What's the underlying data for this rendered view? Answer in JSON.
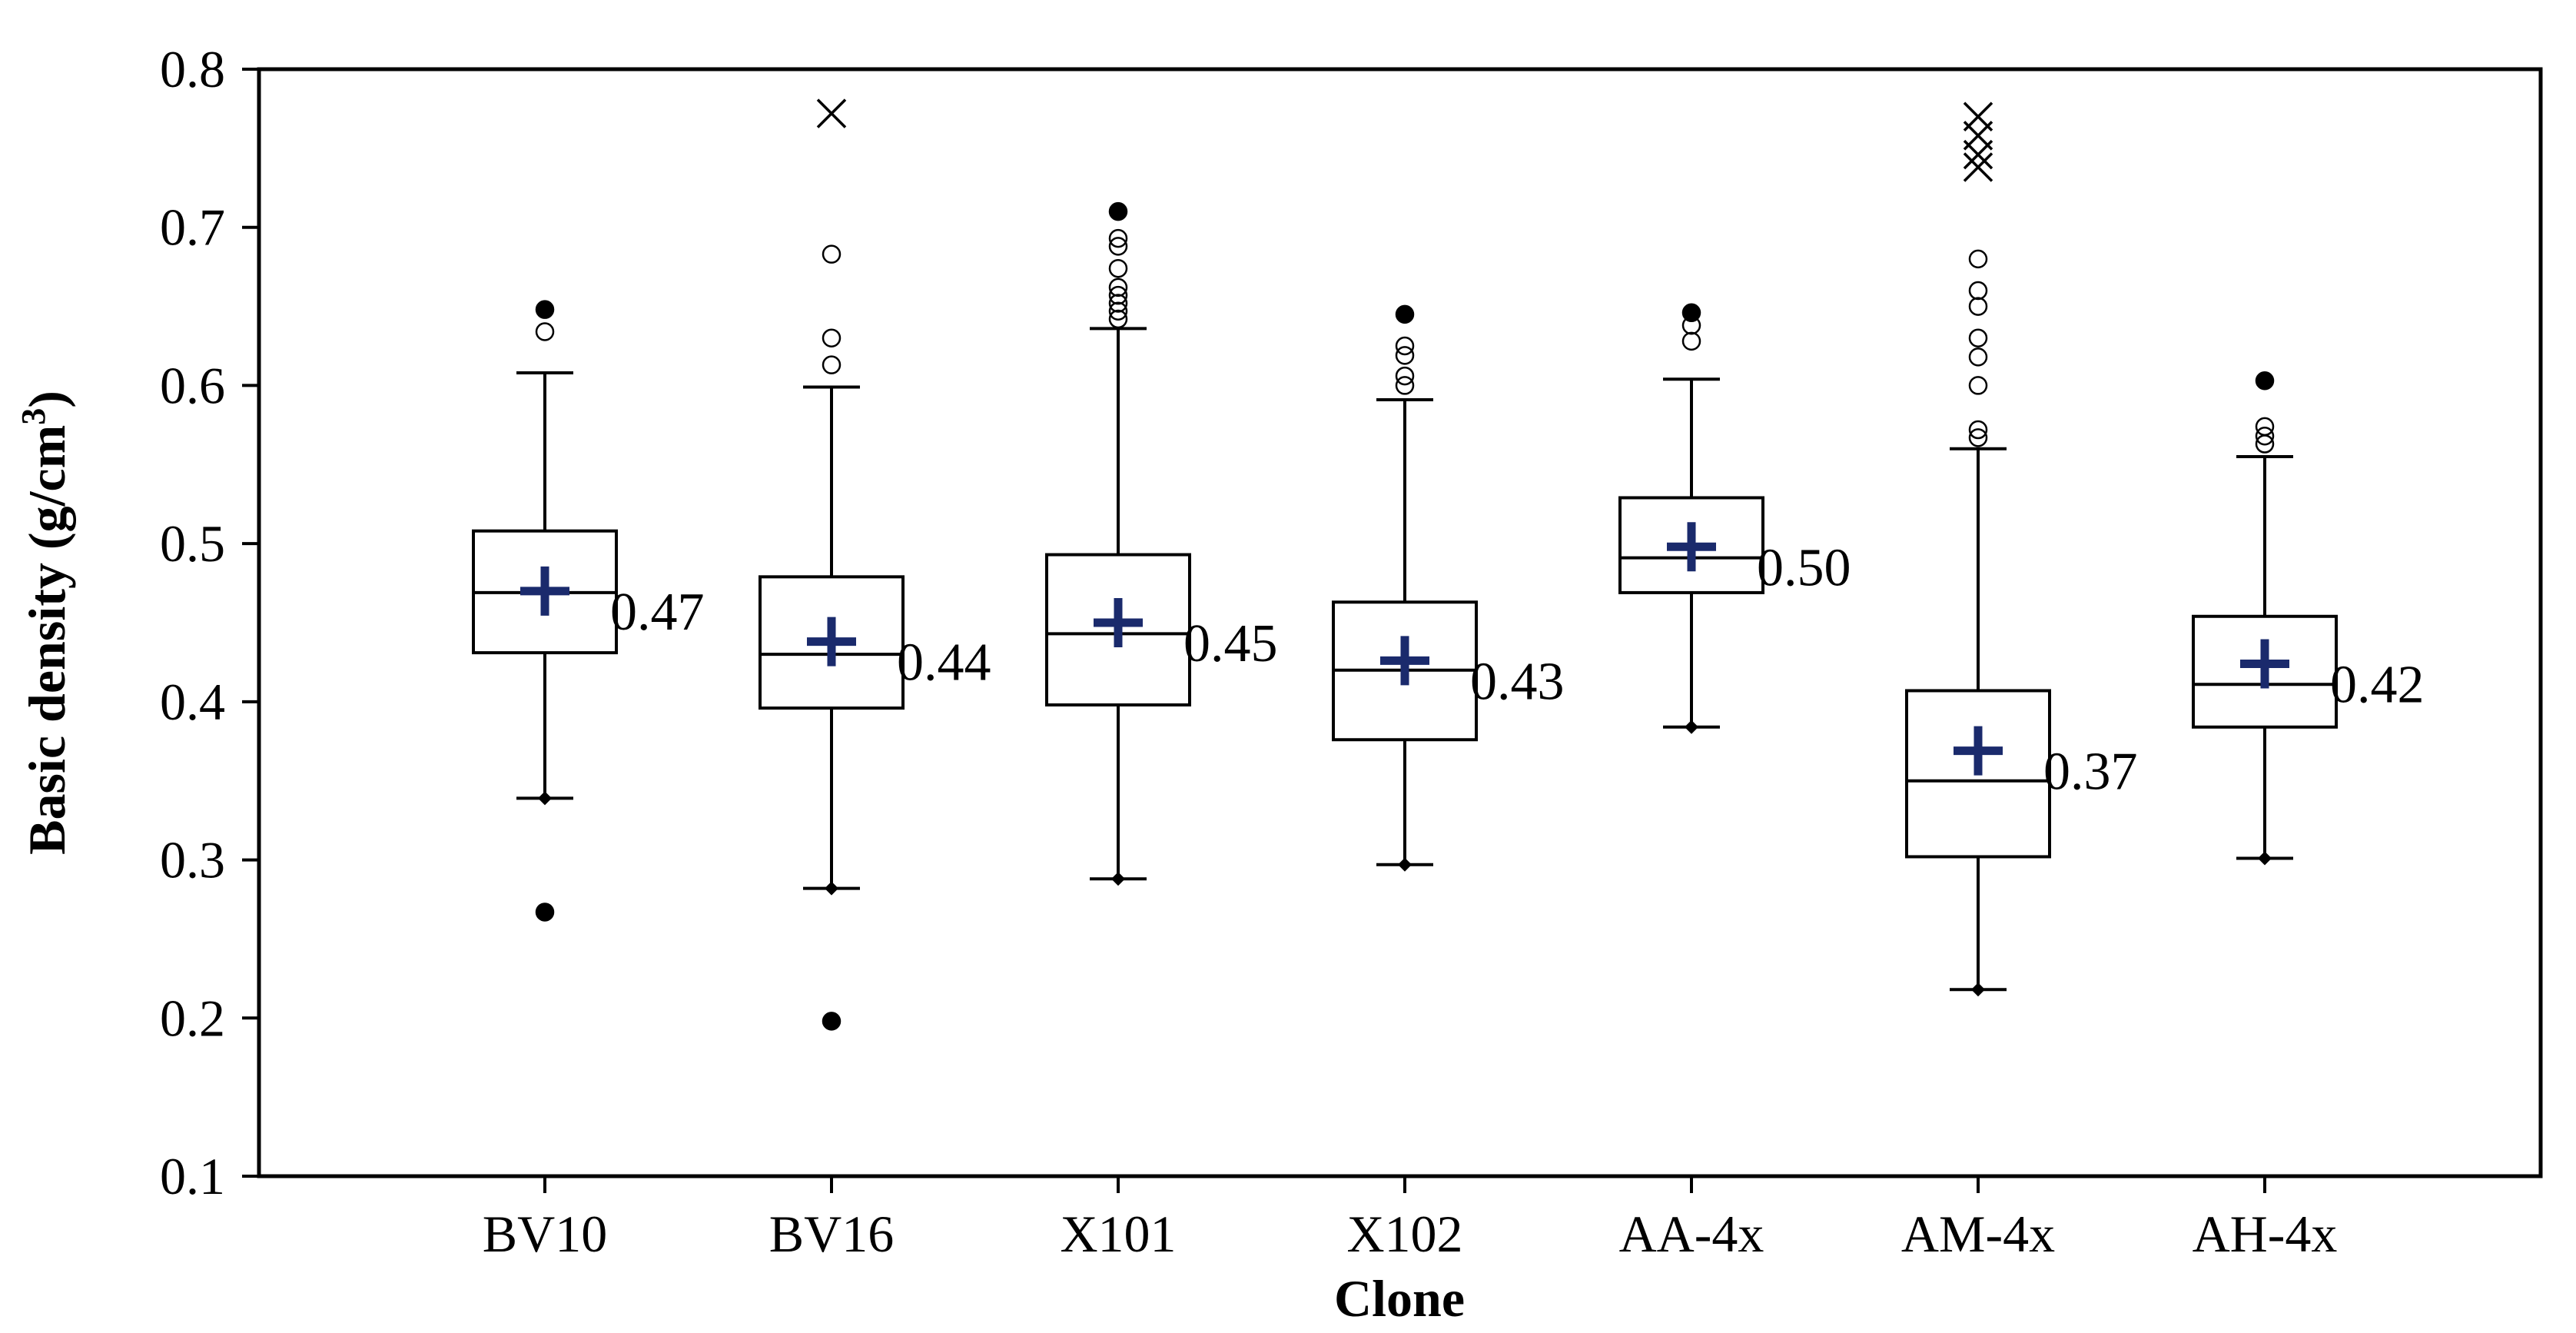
{
  "chart_data": {
    "type": "box",
    "title": "",
    "xlabel": "Clone",
    "ylabel_main": "Basic density (g/cm",
    "ylabel_sup": "3",
    "ylabel_close": ")",
    "ylim": [
      0.1,
      0.8
    ],
    "yticks": [
      0.1,
      0.2,
      0.3,
      0.4,
      0.5,
      0.6,
      0.7,
      0.8
    ],
    "ytick_labels": [
      "0.1",
      "0.2",
      "0.3",
      "0.4",
      "0.5",
      "0.6",
      "0.7",
      "0.8"
    ],
    "grid": false,
    "colors": {
      "mean_marker": "#1a2a6c",
      "box_stroke": "#000000"
    },
    "series": [
      {
        "name": "BV10",
        "q1": 0.431,
        "median": 0.469,
        "q3": 0.508,
        "whisker_low": 0.339,
        "whisker_high": 0.608,
        "mean": 0.47,
        "mean_label": "0.47",
        "outliers_open": [
          0.634
        ],
        "outliers_filled": [
          0.648,
          0.267
        ],
        "outliers_extreme": []
      },
      {
        "name": "BV16",
        "q1": 0.396,
        "median": 0.43,
        "q3": 0.479,
        "whisker_low": 0.282,
        "whisker_high": 0.599,
        "mean": 0.438,
        "mean_label": "0.44",
        "outliers_open": [
          0.613,
          0.63,
          0.683
        ],
        "outliers_filled": [
          0.198
        ],
        "outliers_extreme": [
          0.772
        ]
      },
      {
        "name": "X101",
        "q1": 0.398,
        "median": 0.443,
        "q3": 0.493,
        "whisker_low": 0.288,
        "whisker_high": 0.636,
        "mean": 0.45,
        "mean_label": "0.45",
        "outliers_open": [
          0.642,
          0.647,
          0.652,
          0.657,
          0.662,
          0.674,
          0.688,
          0.693
        ],
        "outliers_filled": [
          0.71
        ],
        "outliers_extreme": []
      },
      {
        "name": "X102",
        "q1": 0.376,
        "median": 0.42,
        "q3": 0.463,
        "whisker_low": 0.297,
        "whisker_high": 0.591,
        "mean": 0.426,
        "mean_label": "0.43",
        "outliers_open": [
          0.6,
          0.606,
          0.619,
          0.625
        ],
        "outliers_filled": [
          0.645
        ],
        "outliers_extreme": []
      },
      {
        "name": "AA-4x",
        "q1": 0.469,
        "median": 0.491,
        "q3": 0.529,
        "whisker_low": 0.384,
        "whisker_high": 0.604,
        "mean": 0.498,
        "mean_label": "0.50",
        "outliers_open": [
          0.628,
          0.638
        ],
        "outliers_filled": [
          0.646
        ],
        "outliers_extreme": []
      },
      {
        "name": "AM-4x",
        "q1": 0.302,
        "median": 0.35,
        "q3": 0.407,
        "whisker_low": 0.218,
        "whisker_high": 0.56,
        "mean": 0.369,
        "mean_label": "0.37",
        "outliers_open": [
          0.567,
          0.572,
          0.6,
          0.618,
          0.63,
          0.65,
          0.66,
          0.68
        ],
        "outliers_filled": [],
        "outliers_extreme": [
          0.77,
          0.758,
          0.746,
          0.738
        ]
      },
      {
        "name": "AH-4x",
        "q1": 0.384,
        "median": 0.411,
        "q3": 0.454,
        "whisker_low": 0.301,
        "whisker_high": 0.555,
        "mean": 0.424,
        "mean_label": "0.42",
        "outliers_open": [
          0.563,
          0.568,
          0.574
        ],
        "outliers_filled": [
          0.603
        ],
        "outliers_extreme": []
      }
    ]
  }
}
